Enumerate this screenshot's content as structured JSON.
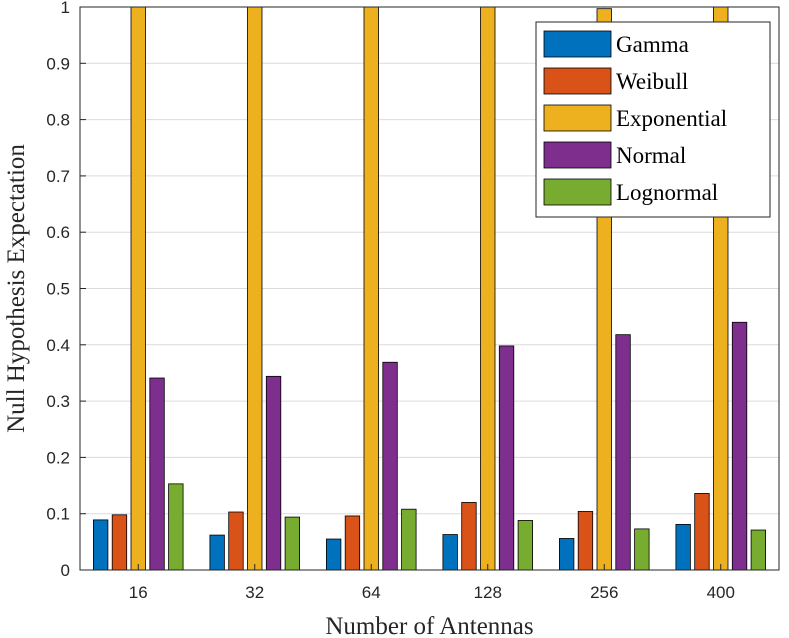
{
  "chart_data": {
    "type": "bar",
    "title": "",
    "xlabel": "Number of Antennas",
    "ylabel": "Null Hypothesis Expectation",
    "categories": [
      "16",
      "32",
      "64",
      "128",
      "256",
      "400"
    ],
    "ylim": [
      0,
      1
    ],
    "yticks": [
      "0",
      "0.1",
      "0.2",
      "0.3",
      "0.4",
      "0.5",
      "0.6",
      "0.7",
      "0.8",
      "0.9",
      "1"
    ],
    "grid": true,
    "legend_position": "top-right",
    "series": [
      {
        "name": "Gamma",
        "color": "#0072BD",
        "values": [
          0.089,
          0.062,
          0.055,
          0.063,
          0.056,
          0.081
        ]
      },
      {
        "name": "Weibull",
        "color": "#D95319",
        "values": [
          0.098,
          0.103,
          0.096,
          0.12,
          0.104,
          0.136
        ]
      },
      {
        "name": "Exponential",
        "color": "#EDB120",
        "values": [
          1.0,
          1.0,
          1.0,
          1.0,
          0.997,
          1.0
        ]
      },
      {
        "name": "Normal",
        "color": "#7E2F8E",
        "values": [
          0.341,
          0.344,
          0.369,
          0.398,
          0.418,
          0.44
        ]
      },
      {
        "name": "Lognormal",
        "color": "#77AC30",
        "values": [
          0.153,
          0.094,
          0.108,
          0.088,
          0.073,
          0.071
        ]
      }
    ]
  }
}
